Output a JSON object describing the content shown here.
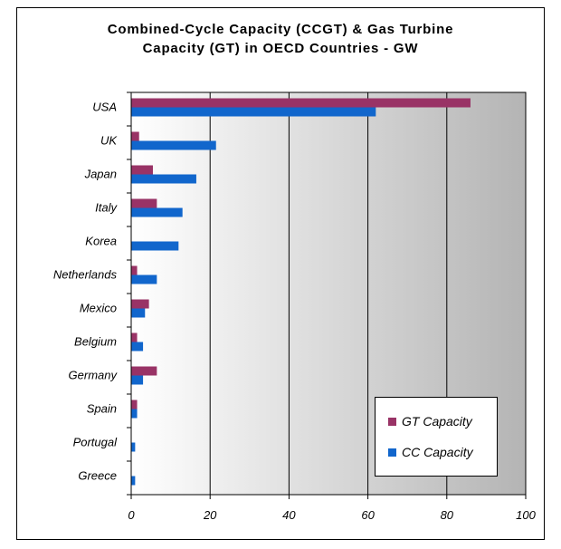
{
  "chart_data": {
    "type": "bar",
    "orientation": "horizontal",
    "title_lines": [
      "Combined-Cycle Capacity (CCGT) & Gas Turbine",
      "Capacity  (GT) in OECD Countries - GW"
    ],
    "categories": [
      "USA",
      "UK",
      "Japan",
      "Italy",
      "Korea",
      "Netherlands",
      "Mexico",
      "Belgium",
      "Germany",
      "Spain",
      "Portugal",
      "Greece"
    ],
    "series": [
      {
        "name": "GT Capacity",
        "color": "#993366",
        "values": [
          86,
          2,
          5.5,
          6.5,
          0,
          1.5,
          4.5,
          1.5,
          6.5,
          1.5,
          0,
          0
        ]
      },
      {
        "name": "CC Capacity",
        "color": "#1166cc",
        "values": [
          62,
          21.5,
          16.5,
          13,
          12,
          6.5,
          3.5,
          3,
          3,
          1.5,
          1,
          1
        ]
      }
    ],
    "xlim": [
      0,
      100
    ],
    "xticks": [
      0,
      20,
      40,
      60,
      80,
      100
    ],
    "xlabel": "",
    "ylabel": "",
    "grid": "vertical",
    "legend_position": "bottom-right",
    "plot_background": "gray-gradient"
  }
}
